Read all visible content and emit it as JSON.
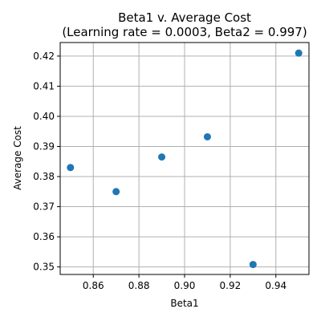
{
  "chart_data": {
    "type": "scatter",
    "title_line1": "Beta1 v. Average Cost",
    "title_line2": "(Learning rate = 0.0003, Beta2 = 0.997)",
    "xlabel": "Beta1",
    "ylabel": "Average Cost",
    "xlim": [
      0.8455,
      0.9545
    ],
    "ylim": [
      0.3475,
      0.4245
    ],
    "xticks": [
      "0.86",
      "0.88",
      "0.90",
      "0.92",
      "0.94"
    ],
    "xtick_values": [
      0.86,
      0.88,
      0.9,
      0.92,
      0.94
    ],
    "yticks": [
      "0.35",
      "0.36",
      "0.37",
      "0.38",
      "0.39",
      "0.40",
      "0.41",
      "0.42"
    ],
    "ytick_values": [
      0.35,
      0.36,
      0.37,
      0.38,
      0.39,
      0.4,
      0.41,
      0.42
    ],
    "grid": true,
    "marker_color": "#1f77b4",
    "x": [
      0.85,
      0.87,
      0.89,
      0.91,
      0.93,
      0.95
    ],
    "y": [
      0.383,
      0.375,
      0.3865,
      0.3932,
      0.3508,
      0.421
    ]
  }
}
